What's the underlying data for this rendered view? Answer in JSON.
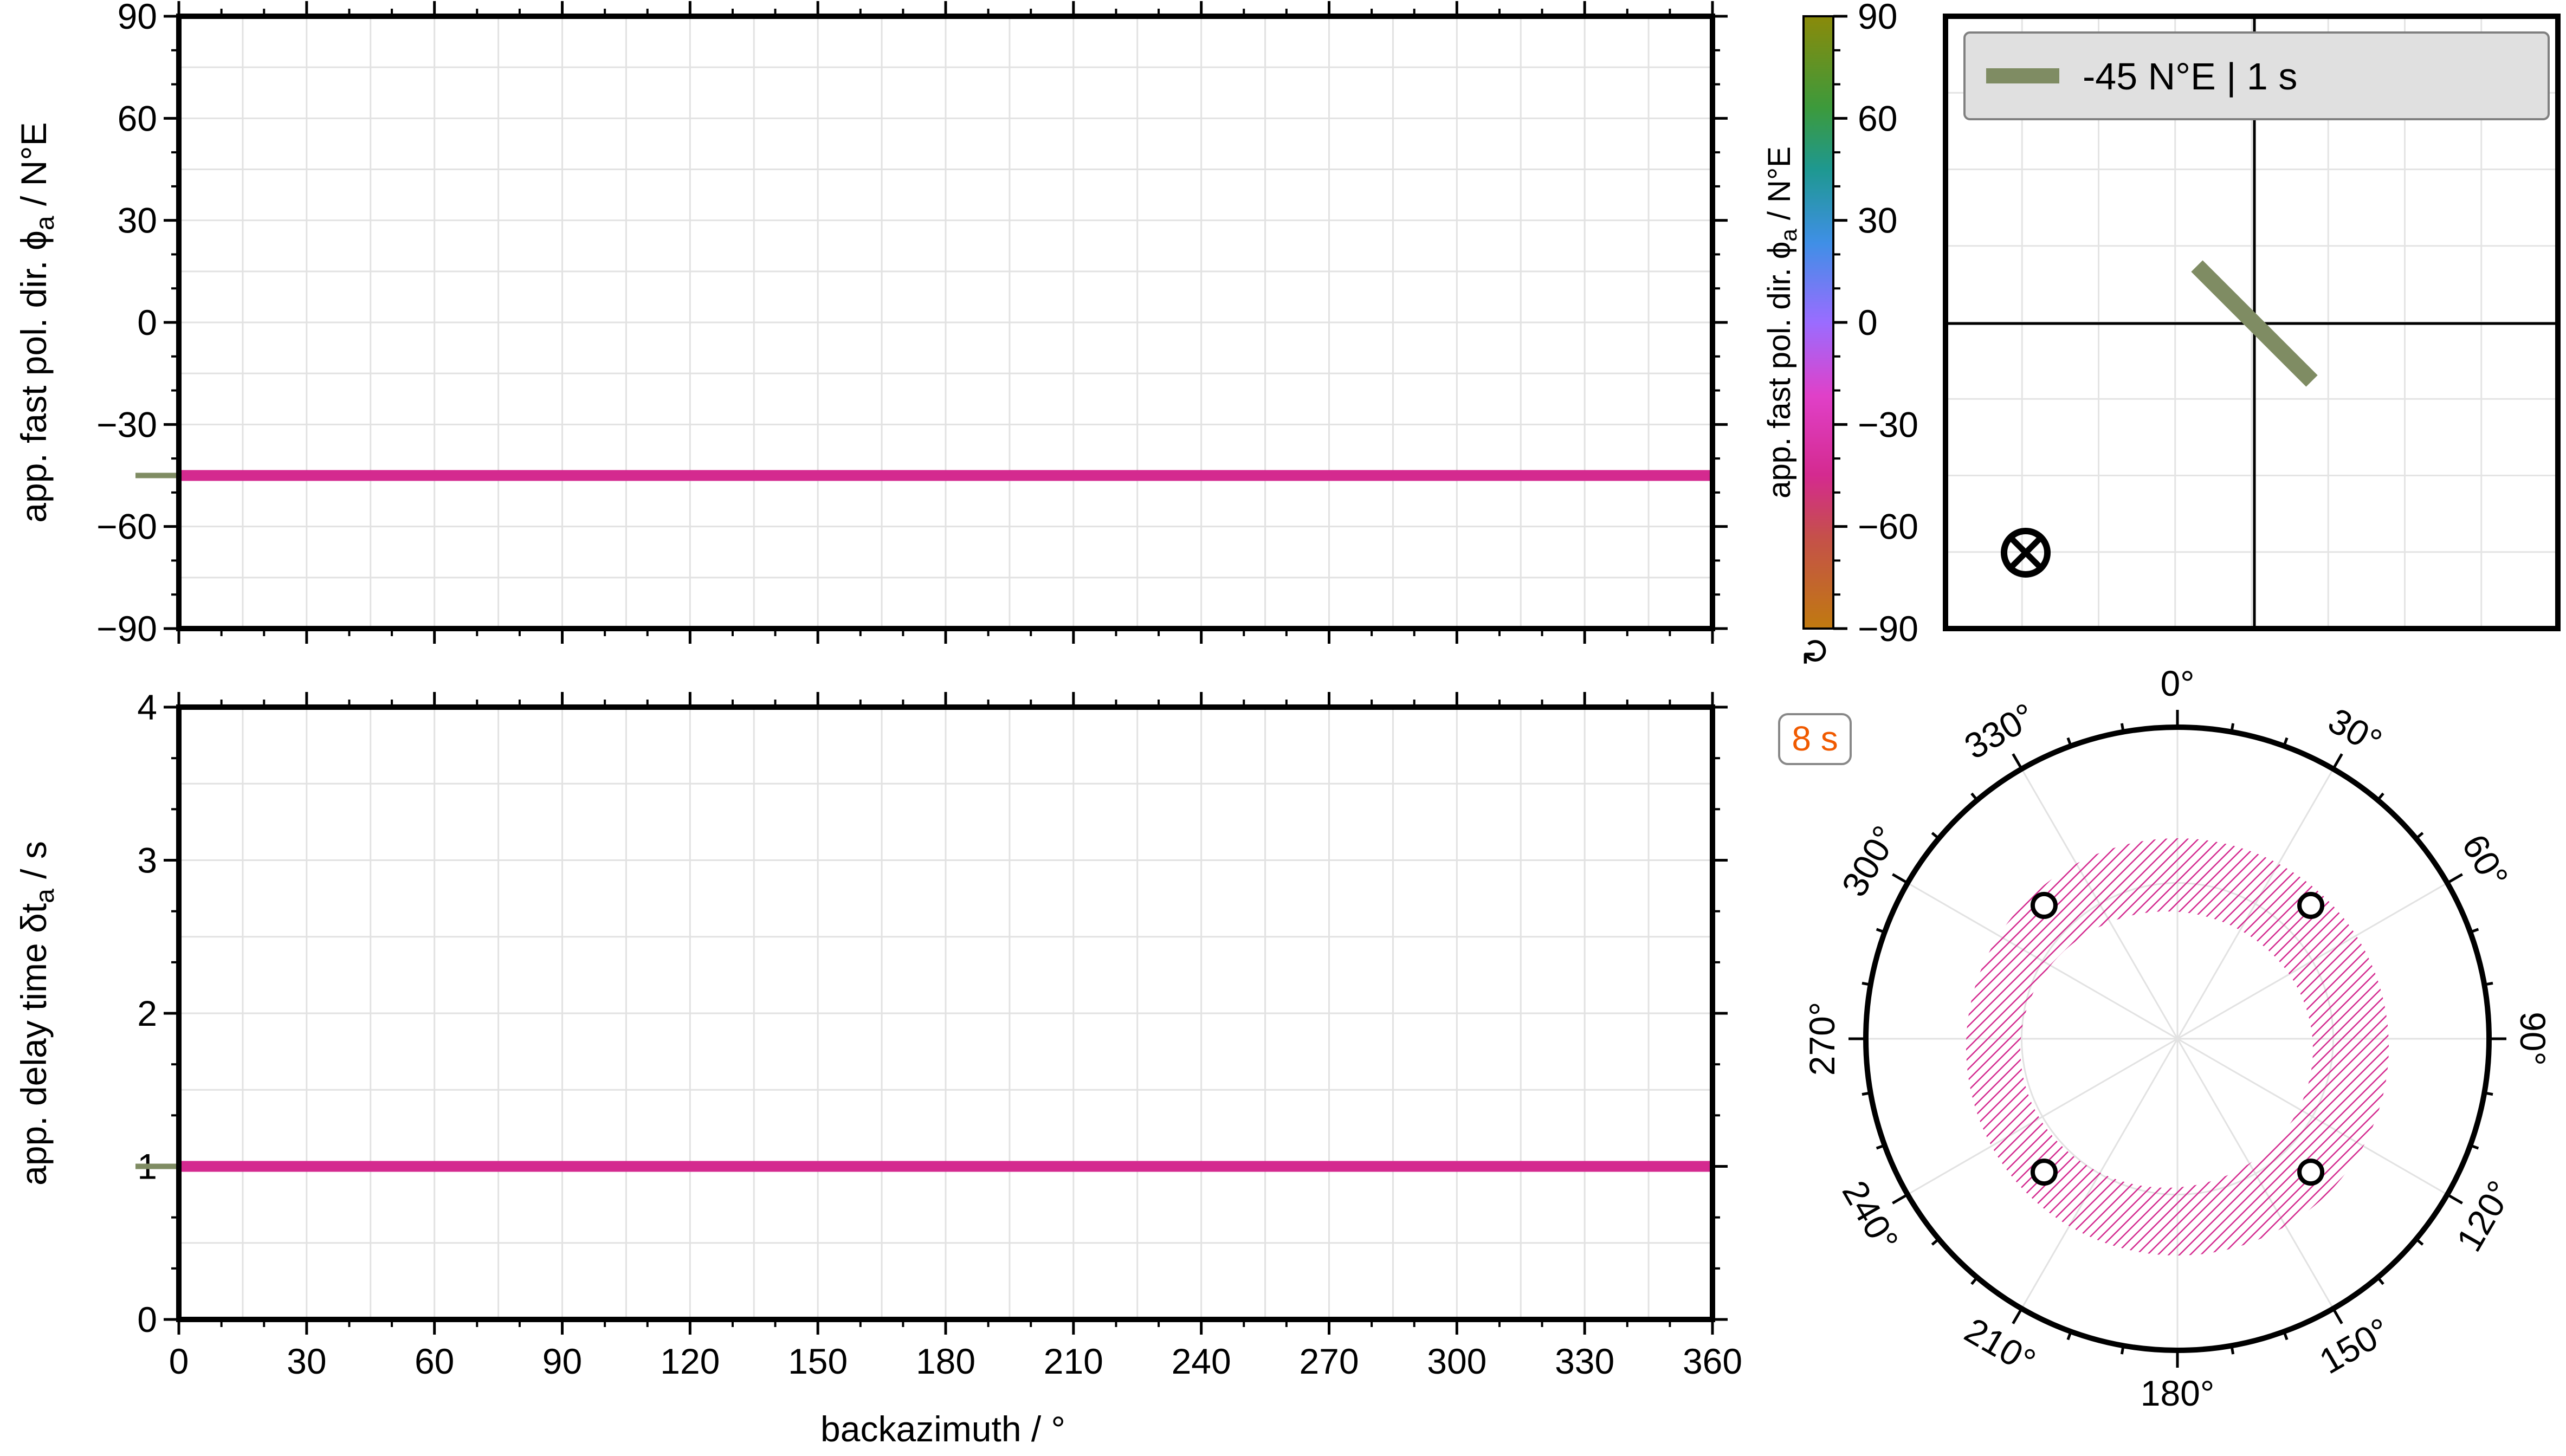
{
  "colors": {
    "data_line": "#d42a8f",
    "reference_line": "#7f8c63",
    "badge_text": "#f05a00",
    "hatch": "#d42a8f"
  },
  "chart_data": [
    {
      "id": "fast-direction-vs-baz",
      "type": "line",
      "xlabel": "backazimuth / °",
      "ylabel": "app. fast pol. dir. ϕ",
      "ylabel_sub": "a",
      "ylabel_unit": " / N°E",
      "xlim": [
        0,
        360
      ],
      "ylim": [
        -90,
        90
      ],
      "x_ticks": [
        0,
        30,
        60,
        90,
        120,
        150,
        180,
        210,
        240,
        270,
        300,
        330,
        360
      ],
      "y_ticks": [
        -90,
        -60,
        -30,
        0,
        30,
        60,
        90
      ],
      "grid": true,
      "series": [
        {
          "x": [
            0,
            360
          ],
          "y": [
            -45,
            -45
          ]
        }
      ],
      "reference": -45
    },
    {
      "id": "delay-time-vs-baz",
      "type": "line",
      "xlabel": "backazimuth / °",
      "ylabel": "app. delay time δt",
      "ylabel_sub": "a",
      "ylabel_unit": " / s",
      "xlim": [
        0,
        360
      ],
      "ylim": [
        0,
        4
      ],
      "x_ticks": [
        0,
        30,
        60,
        90,
        120,
        150,
        180,
        210,
        240,
        270,
        300,
        330,
        360
      ],
      "y_ticks": [
        0,
        1,
        2,
        3,
        4
      ],
      "grid": true,
      "series": [
        {
          "x": [
            0,
            360
          ],
          "y": [
            1,
            1
          ]
        }
      ],
      "reference": 1
    },
    {
      "id": "colorbar",
      "type": "heatmap",
      "label": "app. fast pol. dir. ϕ",
      "label_sub": "a",
      "label_unit": " / N°E",
      "range": [
        -90,
        90
      ],
      "ticks": [
        -90,
        -60,
        -30,
        0,
        30,
        60,
        90
      ],
      "colormap": "cyclic: -90 orange-brown → -45 magenta → 0 purple → 30 blue → 45 teal → 60 green → 90 olive",
      "cyclic_marker": "↻"
    },
    {
      "id": "splitting-model-map",
      "type": "scatter",
      "legend": "-45 N°E | 1 s",
      "legend_position": "top",
      "fast_direction_deg": -45,
      "delay_time_s": 1,
      "propagation_symbol": "⊗",
      "grid": true
    },
    {
      "id": "stereoplot",
      "type": "scatter",
      "badge": "8 s",
      "azimuth_ticks": [
        0,
        30,
        60,
        90,
        120,
        150,
        180,
        210,
        240,
        270,
        300,
        330
      ],
      "azimuth_labels": [
        "0°",
        "30°",
        "60°",
        "90°",
        "120°",
        "150°",
        "180°",
        "210°",
        "240°",
        "270°",
        "300°",
        "330°"
      ],
      "null_markers_baz": [
        45,
        135,
        225,
        315
      ]
    }
  ]
}
